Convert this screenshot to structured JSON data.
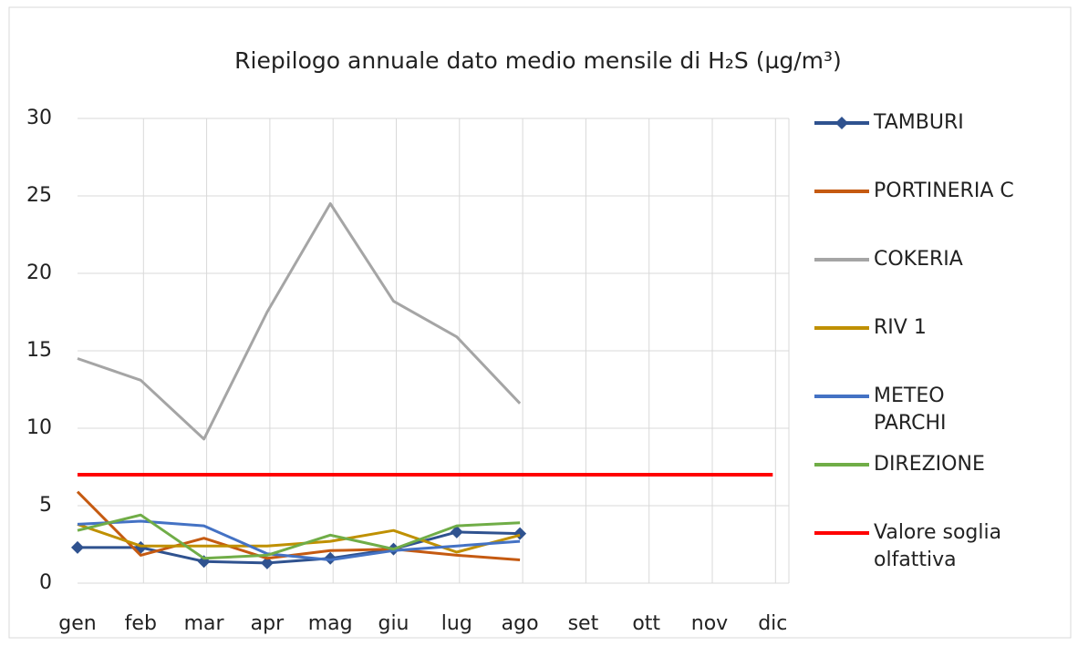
{
  "chart_data": {
    "type": "line",
    "title": "Riepilogo annuale dato medio mensile di H₂S (µg/m³)",
    "categories": [
      "gen",
      "feb",
      "mar",
      "apr",
      "mag",
      "giu",
      "lug",
      "ago",
      "set",
      "ott",
      "nov",
      "dic"
    ],
    "series": [
      {
        "name": "TAMBURI",
        "color": "#2f528f",
        "marker": "diamond",
        "values": [
          2.3,
          2.3,
          1.4,
          1.3,
          1.6,
          2.2,
          3.3,
          3.2,
          null,
          null,
          null,
          null
        ]
      },
      {
        "name": "PORTINERIA C",
        "color": "#c55a11",
        "values": [
          5.9,
          1.8,
          2.9,
          1.6,
          2.1,
          2.2,
          1.8,
          1.5,
          null,
          null,
          null,
          null
        ]
      },
      {
        "name": "COKERIA",
        "color": "#a5a5a5",
        "values": [
          14.5,
          13.1,
          9.3,
          17.5,
          24.5,
          18.2,
          15.9,
          11.6,
          null,
          null,
          null,
          null
        ]
      },
      {
        "name": "RIV 1",
        "color": "#bf9000",
        "values": [
          3.8,
          2.4,
          2.4,
          2.4,
          2.7,
          3.4,
          2.0,
          3.1,
          null,
          null,
          null,
          null
        ]
      },
      {
        "name": "METEO PARCHI",
        "color": "#4472c4",
        "values": [
          3.8,
          4.0,
          3.7,
          1.9,
          1.5,
          2.1,
          2.4,
          2.7,
          null,
          null,
          null,
          null
        ]
      },
      {
        "name": "DIREZIONE",
        "color": "#70ad47",
        "values": [
          3.4,
          4.4,
          1.6,
          1.8,
          3.1,
          2.2,
          3.7,
          3.9,
          null,
          null,
          null,
          null
        ]
      },
      {
        "name": "Valore soglia olfattiva",
        "color": "#ff0000",
        "values": [
          7,
          7,
          7,
          7,
          7,
          7,
          7,
          7,
          7,
          7,
          7,
          7
        ]
      }
    ],
    "ylim": [
      0,
      30
    ],
    "yticks": [
      0,
      5,
      10,
      15,
      20,
      25,
      30
    ],
    "grid": true,
    "legend": "right"
  }
}
